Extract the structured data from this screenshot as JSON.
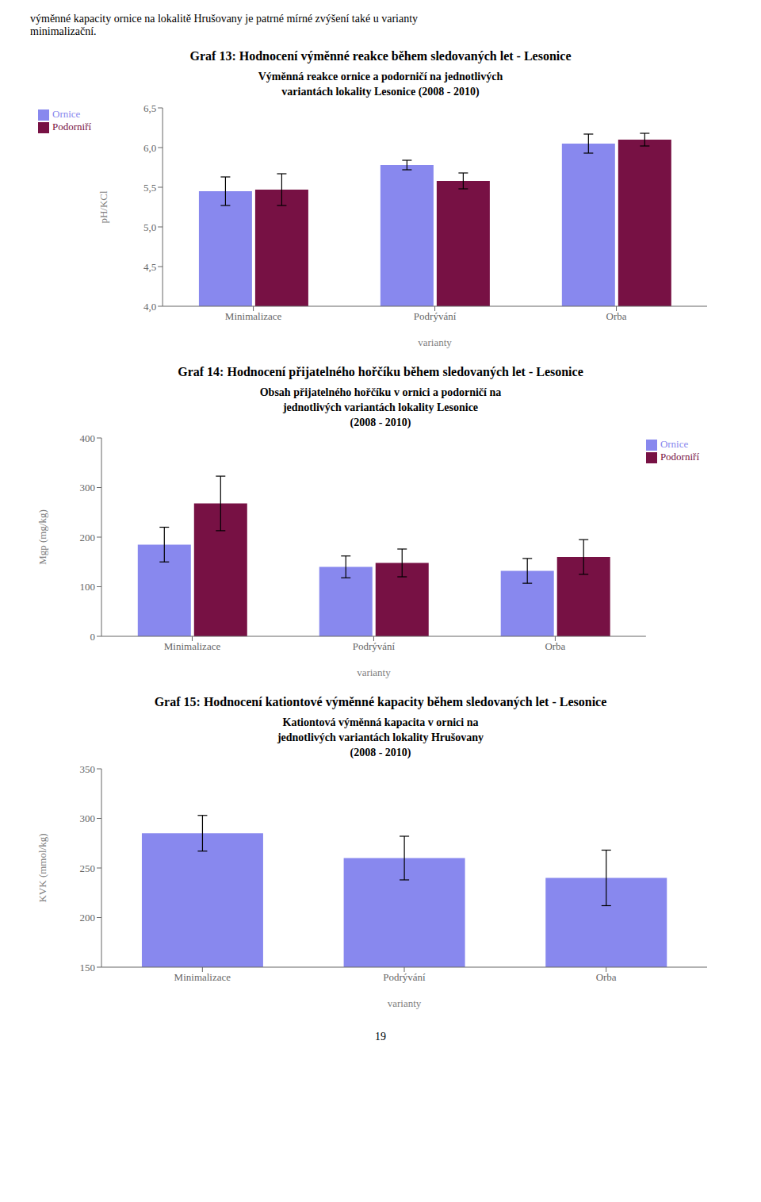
{
  "annotations": [
    "výměnné kapacity ornice na lokalitě Hrušovany je patrné mírné zvýšení také u varianty",
    "minimalizační.",
    "19"
  ],
  "chart_data": [
    {
      "type": "bar",
      "title": "Graf 13: Hodnocení výměnné reakce během sledovaných let - Lesonice",
      "subtitle": "Výměnná reakce ornice a podorničí na jednotlivých\nvariantách lokality Lesonice (2008 - 2010)",
      "xlabel": "varianty",
      "ylabel": "pH/KCl",
      "categories": [
        "Minimalizace",
        "Podrývání",
        "Orba"
      ],
      "series": [
        {
          "name": "Ornice",
          "color": "#8888EE",
          "values": [
            5.45,
            5.78,
            6.05
          ],
          "errors": [
            0.18,
            0.06,
            0.12
          ]
        },
        {
          "name": "Podorniří",
          "color": "#771144",
          "values": [
            5.47,
            5.58,
            6.1
          ],
          "errors": [
            0.2,
            0.1,
            0.08
          ]
        }
      ],
      "ylim": [
        4.0,
        6.5
      ],
      "yticks": [
        {
          "value": 4.0,
          "label": "4,0"
        },
        {
          "value": 4.5,
          "label": "4,5"
        },
        {
          "value": 5.0,
          "label": "5,0"
        },
        {
          "value": 5.5,
          "label": "5,5"
        },
        {
          "value": 6.0,
          "label": "6,0"
        },
        {
          "value": 6.5,
          "label": "6,5"
        }
      ],
      "legend": "upper left"
    },
    {
      "type": "bar",
      "title": "Graf 14: Hodnocení přijatelného hořčíku během sledovaných let - Lesonice",
      "subtitle": "Obsah přijatelného hořčíku v ornici a podorničí na\njednotlivých variantách lokality Lesonice\n(2008 - 2010)",
      "xlabel": "varianty",
      "ylabel": "Mgp (mg/kg)",
      "categories": [
        "Minimalizace",
        "Podrývání",
        "Orba"
      ],
      "series": [
        {
          "name": "Ornice",
          "color": "#8888EE",
          "values": [
            185,
            140,
            132
          ],
          "errors": [
            35,
            22,
            25
          ]
        },
        {
          "name": "Podorniří",
          "color": "#771144",
          "values": [
            268,
            148,
            160
          ],
          "errors": [
            55,
            28,
            35
          ]
        }
      ],
      "ylim": [
        0,
        400
      ],
      "yticks": [
        0,
        100,
        200,
        300,
        400
      ],
      "legend": "upper right"
    },
    {
      "type": "bar",
      "title": "Graf 15: Hodnocení kationtové výměnné kapacity během sledovaných let - Lesonice",
      "subtitle": "Kationtová výměnná kapacita v ornici  na\njednotlivých variantách lokality Hrušovany\n(2008 - 2010)",
      "xlabel": "varianty",
      "ylabel": "KVK (mmol/kg)",
      "categories": [
        "Minimalizace",
        "Podrývání",
        "Orba"
      ],
      "series": [
        {
          "color": "#8888EE",
          "values": [
            285,
            260,
            240
          ],
          "errors": [
            18,
            22,
            28
          ]
        }
      ],
      "ylim": [
        150,
        350
      ],
      "yticks": [
        150,
        200,
        250,
        300,
        350
      ]
    }
  ]
}
